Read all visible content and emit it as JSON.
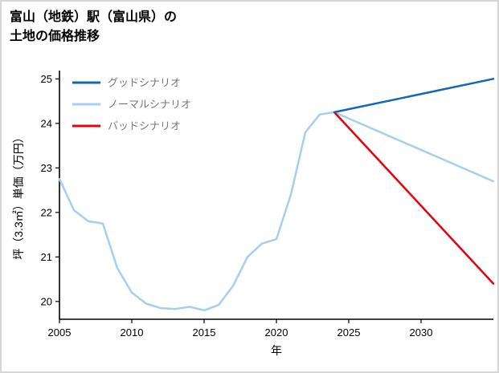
{
  "page": {
    "background": "#ffffff",
    "border_color": "#d6d6d6"
  },
  "chart_data": {
    "type": "line",
    "title_lines": [
      "富山（地鉄）駅（富山県）の",
      "土地の価格推移"
    ],
    "xlabel": "年",
    "ylabel": "坪（3.3㎡）単価（万円）",
    "xlim": [
      2005,
      2035
    ],
    "ylim": [
      19.6,
      25.15
    ],
    "xticks": [
      2005,
      2010,
      2015,
      2020,
      2025,
      2030
    ],
    "yticks": [
      20,
      21,
      22,
      23,
      24,
      25
    ],
    "grid": false,
    "legend_position": "upper-left",
    "legend": [
      {
        "id": "good",
        "label": "グッドシナリオ",
        "color": "#1467b4"
      },
      {
        "id": "normal",
        "label": "ノーマルシナリオ",
        "color": "#a6cef0"
      },
      {
        "id": "bad",
        "label": "バッドシナリオ",
        "color": "#e8000b"
      }
    ],
    "series": [
      {
        "name": "historical",
        "color": "#a6cef0",
        "width": 2.5,
        "points": [
          [
            2005,
            22.75
          ],
          [
            2006,
            22.05
          ],
          [
            2007,
            21.8
          ],
          [
            2008,
            21.75
          ],
          [
            2009,
            20.75
          ],
          [
            2010,
            20.2
          ],
          [
            2011,
            19.95
          ],
          [
            2012,
            19.85
          ],
          [
            2013,
            19.83
          ],
          [
            2014,
            19.88
          ],
          [
            2015,
            19.8
          ],
          [
            2016,
            19.92
          ],
          [
            2017,
            20.35
          ],
          [
            2018,
            21.0
          ],
          [
            2019,
            21.3
          ],
          [
            2020,
            21.4
          ],
          [
            2021,
            22.4
          ],
          [
            2022,
            23.8
          ],
          [
            2023,
            24.2
          ],
          [
            2024,
            24.25
          ]
        ]
      },
      {
        "name": "normal-scenario",
        "color": "#a6cef0",
        "width": 2.5,
        "points": [
          [
            2024,
            24.25
          ],
          [
            2035,
            22.7
          ]
        ]
      },
      {
        "name": "bad-scenario",
        "color": "#e8000b",
        "width": 2.5,
        "points": [
          [
            2024,
            24.25
          ],
          [
            2035,
            20.4
          ]
        ]
      },
      {
        "name": "good-scenario",
        "color": "#1467b4",
        "width": 2.5,
        "points": [
          [
            2024,
            24.25
          ],
          [
            2035,
            25.0
          ]
        ]
      }
    ]
  }
}
